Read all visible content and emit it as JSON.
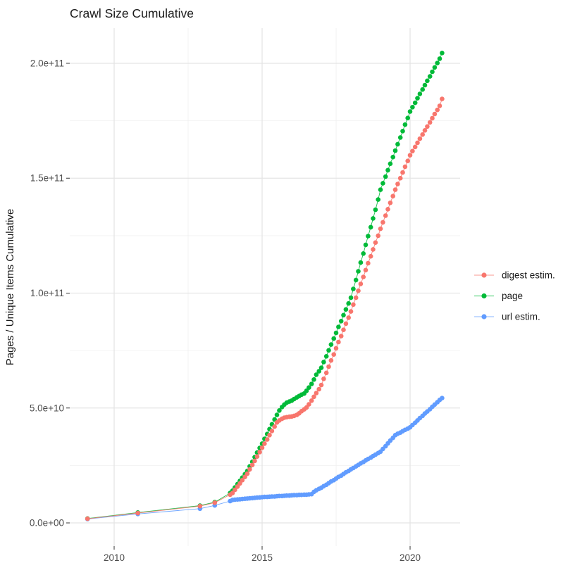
{
  "chart_data": {
    "type": "scatter",
    "title": "Crawl Size Cumulative",
    "xlabel": "",
    "ylabel": "Pages / Unique Items Cumulative",
    "y_unit": "billions (1e9 items); tick labels shown in scientific notation",
    "grid": true,
    "legend_position": "right-center",
    "xlim": [
      2008.5,
      2021.69
    ],
    "ylim_billions": [
      -10.1,
      215.3
    ],
    "x_ticks": [
      {
        "v": 2010,
        "label": "2010"
      },
      {
        "v": 2015,
        "label": "2015"
      },
      {
        "v": 2020,
        "label": "2020"
      }
    ],
    "x_minor": [
      2012.5,
      2017.5
    ],
    "y_ticks": [
      {
        "v": 0,
        "label": "0.0e+00"
      },
      {
        "v": 50,
        "label": "5.0e+10"
      },
      {
        "v": 100,
        "label": "1.0e+11"
      },
      {
        "v": 150,
        "label": "1.5e+11"
      },
      {
        "v": 200,
        "label": "2.0e+11"
      }
    ],
    "y_minor": [
      25,
      75,
      125,
      175
    ],
    "series": [
      {
        "name": "page",
        "color": "#00BA38",
        "points": [
          [
            2009.1,
            1.9
          ],
          [
            2010.8,
            4.5
          ],
          [
            2012.9,
            7.5
          ],
          [
            2013.4,
            9.0
          ],
          [
            2013.92,
            13.0
          ],
          [
            2014.0,
            14.0
          ],
          [
            2014.08,
            15.4
          ],
          [
            2014.17,
            16.9
          ],
          [
            2014.25,
            18.3
          ],
          [
            2014.33,
            19.7
          ],
          [
            2014.42,
            21.2
          ],
          [
            2014.5,
            22.6
          ],
          [
            2014.58,
            24.6
          ],
          [
            2014.67,
            26.6
          ],
          [
            2014.75,
            28.6
          ],
          [
            2014.83,
            30.6
          ],
          [
            2014.92,
            32.6
          ],
          [
            2015.0,
            34.5
          ],
          [
            2015.08,
            36.6
          ],
          [
            2015.17,
            38.7
          ],
          [
            2015.25,
            40.8
          ],
          [
            2015.33,
            42.9
          ],
          [
            2015.42,
            45.0
          ],
          [
            2015.5,
            47.0
          ],
          [
            2015.58,
            48.9
          ],
          [
            2015.67,
            50.4
          ],
          [
            2015.75,
            51.5
          ],
          [
            2015.83,
            52.3
          ],
          [
            2015.92,
            52.8
          ],
          [
            2016.0,
            53.2
          ],
          [
            2016.08,
            53.9
          ],
          [
            2016.17,
            54.6
          ],
          [
            2016.25,
            55.2
          ],
          [
            2016.33,
            55.8
          ],
          [
            2016.42,
            56.3
          ],
          [
            2016.5,
            57.5
          ],
          [
            2016.58,
            58.9
          ],
          [
            2016.67,
            60.5
          ],
          [
            2016.75,
            62.4
          ],
          [
            2016.83,
            64.5
          ],
          [
            2016.92,
            66.0
          ],
          [
            2017.0,
            67.5
          ],
          [
            2017.08,
            70.0
          ],
          [
            2017.17,
            72.5
          ],
          [
            2017.25,
            75.1
          ],
          [
            2017.33,
            77.6
          ],
          [
            2017.42,
            80.2
          ],
          [
            2017.5,
            82.7
          ],
          [
            2017.58,
            85.3
          ],
          [
            2017.67,
            87.8
          ],
          [
            2017.75,
            90.4
          ],
          [
            2017.83,
            92.9
          ],
          [
            2017.92,
            95.5
          ],
          [
            2018.0,
            98.0
          ],
          [
            2018.08,
            101.8
          ],
          [
            2018.17,
            105.7
          ],
          [
            2018.25,
            109.5
          ],
          [
            2018.33,
            113.3
          ],
          [
            2018.42,
            117.2
          ],
          [
            2018.5,
            121.0
          ],
          [
            2018.58,
            124.8
          ],
          [
            2018.67,
            128.7
          ],
          [
            2018.75,
            132.5
          ],
          [
            2018.83,
            136.3
          ],
          [
            2018.92,
            140.7
          ],
          [
            2019.0,
            145.0
          ],
          [
            2019.08,
            147.8
          ],
          [
            2019.17,
            150.7
          ],
          [
            2019.25,
            153.5
          ],
          [
            2019.33,
            156.3
          ],
          [
            2019.42,
            159.2
          ],
          [
            2019.5,
            162.0
          ],
          [
            2019.58,
            164.8
          ],
          [
            2019.67,
            167.7
          ],
          [
            2019.75,
            170.5
          ],
          [
            2019.83,
            173.3
          ],
          [
            2019.92,
            176.2
          ],
          [
            2020.0,
            179.0
          ],
          [
            2020.08,
            180.9
          ],
          [
            2020.17,
            182.8
          ],
          [
            2020.25,
            184.8
          ],
          [
            2020.33,
            186.7
          ],
          [
            2020.42,
            188.6
          ],
          [
            2020.5,
            190.5
          ],
          [
            2020.58,
            192.4
          ],
          [
            2020.67,
            194.3
          ],
          [
            2020.75,
            196.3
          ],
          [
            2020.83,
            198.2
          ],
          [
            2020.92,
            200.1
          ],
          [
            2021.0,
            202.0
          ],
          [
            2021.08,
            204.5
          ]
        ]
      },
      {
        "name": "url estim.",
        "color": "#619CFF",
        "points": [
          [
            2009.1,
            1.7
          ],
          [
            2010.8,
            3.9
          ],
          [
            2012.9,
            6.2
          ],
          [
            2013.4,
            7.6
          ],
          [
            2013.92,
            9.5
          ],
          [
            2014.0,
            10.0
          ],
          [
            2014.08,
            10.1
          ],
          [
            2014.17,
            10.2
          ],
          [
            2014.25,
            10.3
          ],
          [
            2014.33,
            10.4
          ],
          [
            2014.42,
            10.5
          ],
          [
            2014.5,
            10.6
          ],
          [
            2014.58,
            10.7
          ],
          [
            2014.67,
            10.8
          ],
          [
            2014.75,
            10.9
          ],
          [
            2014.83,
            11.0
          ],
          [
            2014.92,
            11.1
          ],
          [
            2015.0,
            11.2
          ],
          [
            2015.08,
            11.3
          ],
          [
            2015.17,
            11.3
          ],
          [
            2015.25,
            11.4
          ],
          [
            2015.33,
            11.5
          ],
          [
            2015.42,
            11.5
          ],
          [
            2015.5,
            11.6
          ],
          [
            2015.58,
            11.7
          ],
          [
            2015.67,
            11.7
          ],
          [
            2015.75,
            11.8
          ],
          [
            2015.83,
            11.9
          ],
          [
            2015.92,
            11.9
          ],
          [
            2016.0,
            12.0
          ],
          [
            2016.08,
            12.1
          ],
          [
            2016.17,
            12.1
          ],
          [
            2016.25,
            12.2
          ],
          [
            2016.33,
            12.2
          ],
          [
            2016.42,
            12.3
          ],
          [
            2016.5,
            12.3
          ],
          [
            2016.58,
            12.4
          ],
          [
            2016.67,
            12.5
          ],
          [
            2016.75,
            13.5
          ],
          [
            2016.83,
            14.2
          ],
          [
            2016.92,
            14.8
          ],
          [
            2017.0,
            15.3
          ],
          [
            2017.08,
            16.0
          ],
          [
            2017.17,
            16.6
          ],
          [
            2017.25,
            17.3
          ],
          [
            2017.33,
            18.0
          ],
          [
            2017.42,
            18.6
          ],
          [
            2017.5,
            19.3
          ],
          [
            2017.58,
            20.0
          ],
          [
            2017.67,
            20.6
          ],
          [
            2017.75,
            21.3
          ],
          [
            2017.83,
            22.0
          ],
          [
            2017.92,
            22.6
          ],
          [
            2018.0,
            23.3
          ],
          [
            2018.08,
            23.9
          ],
          [
            2018.17,
            24.6
          ],
          [
            2018.25,
            25.2
          ],
          [
            2018.33,
            25.9
          ],
          [
            2018.42,
            26.5
          ],
          [
            2018.5,
            27.2
          ],
          [
            2018.58,
            27.8
          ],
          [
            2018.67,
            28.4
          ],
          [
            2018.75,
            29.1
          ],
          [
            2018.83,
            29.7
          ],
          [
            2018.92,
            30.4
          ],
          [
            2019.0,
            31.0
          ],
          [
            2019.08,
            32.2
          ],
          [
            2019.17,
            33.4
          ],
          [
            2019.25,
            34.6
          ],
          [
            2019.33,
            35.8
          ],
          [
            2019.42,
            37.0
          ],
          [
            2019.5,
            38.2
          ],
          [
            2019.58,
            38.8
          ],
          [
            2019.67,
            39.3
          ],
          [
            2019.75,
            39.9
          ],
          [
            2019.83,
            40.5
          ],
          [
            2019.92,
            41.0
          ],
          [
            2020.0,
            41.6
          ],
          [
            2020.08,
            42.6
          ],
          [
            2020.17,
            43.6
          ],
          [
            2020.25,
            44.6
          ],
          [
            2020.33,
            45.6
          ],
          [
            2020.42,
            46.6
          ],
          [
            2020.5,
            47.6
          ],
          [
            2020.58,
            48.5
          ],
          [
            2020.67,
            49.5
          ],
          [
            2020.75,
            50.5
          ],
          [
            2020.83,
            51.5
          ],
          [
            2020.92,
            52.5
          ],
          [
            2021.0,
            53.5
          ],
          [
            2021.08,
            54.3
          ]
        ]
      },
      {
        "name": "digest estim.",
        "color": "#F8766D",
        "points": [
          [
            2009.1,
            1.8
          ],
          [
            2010.8,
            4.3
          ],
          [
            2012.9,
            7.3
          ],
          [
            2013.4,
            8.8
          ],
          [
            2013.92,
            12.3
          ],
          [
            2014.0,
            13.0
          ],
          [
            2014.08,
            14.4
          ],
          [
            2014.17,
            15.8
          ],
          [
            2014.25,
            17.2
          ],
          [
            2014.33,
            18.6
          ],
          [
            2014.42,
            20.0
          ],
          [
            2014.5,
            21.4
          ],
          [
            2014.58,
            23.3
          ],
          [
            2014.67,
            25.2
          ],
          [
            2014.75,
            27.0
          ],
          [
            2014.83,
            28.9
          ],
          [
            2014.92,
            30.8
          ],
          [
            2015.0,
            32.7
          ],
          [
            2015.08,
            34.5
          ],
          [
            2015.17,
            36.3
          ],
          [
            2015.25,
            38.2
          ],
          [
            2015.33,
            40.0
          ],
          [
            2015.42,
            41.9
          ],
          [
            2015.5,
            43.7
          ],
          [
            2015.58,
            44.6
          ],
          [
            2015.67,
            45.3
          ],
          [
            2015.75,
            45.8
          ],
          [
            2015.83,
            46.0
          ],
          [
            2015.92,
            46.2
          ],
          [
            2016.0,
            46.3
          ],
          [
            2016.08,
            46.6
          ],
          [
            2016.17,
            47.0
          ],
          [
            2016.25,
            47.7
          ],
          [
            2016.33,
            48.6
          ],
          [
            2016.42,
            49.4
          ],
          [
            2016.5,
            50.2
          ],
          [
            2016.58,
            51.6
          ],
          [
            2016.67,
            53.2
          ],
          [
            2016.75,
            54.9
          ],
          [
            2016.83,
            56.5
          ],
          [
            2016.92,
            58.2
          ],
          [
            2017.0,
            60.0
          ],
          [
            2017.08,
            62.7
          ],
          [
            2017.17,
            65.3
          ],
          [
            2017.25,
            68.0
          ],
          [
            2017.33,
            70.7
          ],
          [
            2017.42,
            73.3
          ],
          [
            2017.5,
            76.0
          ],
          [
            2017.58,
            78.7
          ],
          [
            2017.67,
            81.3
          ],
          [
            2017.75,
            84.0
          ],
          [
            2017.83,
            86.7
          ],
          [
            2017.92,
            89.3
          ],
          [
            2018.0,
            92.0
          ],
          [
            2018.08,
            95.0
          ],
          [
            2018.17,
            98.0
          ],
          [
            2018.25,
            101.0
          ],
          [
            2018.33,
            104.0
          ],
          [
            2018.42,
            107.0
          ],
          [
            2018.5,
            110.0
          ],
          [
            2018.58,
            113.0
          ],
          [
            2018.67,
            116.0
          ],
          [
            2018.75,
            119.0
          ],
          [
            2018.83,
            122.0
          ],
          [
            2018.92,
            125.0
          ],
          [
            2019.0,
            128.0
          ],
          [
            2019.08,
            130.8
          ],
          [
            2019.17,
            133.7
          ],
          [
            2019.25,
            136.5
          ],
          [
            2019.33,
            139.3
          ],
          [
            2019.42,
            142.2
          ],
          [
            2019.5,
            145.0
          ],
          [
            2019.58,
            147.5
          ],
          [
            2019.67,
            150.0
          ],
          [
            2019.75,
            152.5
          ],
          [
            2019.83,
            155.0
          ],
          [
            2019.92,
            157.5
          ],
          [
            2020.0,
            160.0
          ],
          [
            2020.08,
            161.8
          ],
          [
            2020.17,
            163.6
          ],
          [
            2020.25,
            165.4
          ],
          [
            2020.33,
            167.2
          ],
          [
            2020.42,
            169.0
          ],
          [
            2020.5,
            170.8
          ],
          [
            2020.58,
            172.5
          ],
          [
            2020.67,
            174.3
          ],
          [
            2020.75,
            176.1
          ],
          [
            2020.83,
            177.9
          ],
          [
            2020.92,
            179.7
          ],
          [
            2021.0,
            181.5
          ],
          [
            2021.08,
            184.5
          ]
        ]
      }
    ],
    "legend": [
      {
        "label": "digest estim.",
        "color": "#F8766D"
      },
      {
        "label": "page",
        "color": "#00BA38"
      },
      {
        "label": "url estim.",
        "color": "#619CFF"
      }
    ],
    "colors": {
      "grid_major": "#e5e5e5",
      "grid_minor": "#f0f0f0",
      "tick_mark": "#333333",
      "tick_label": "#4d4d4d",
      "text": "#1a1a1a",
      "background": "#ffffff"
    }
  }
}
